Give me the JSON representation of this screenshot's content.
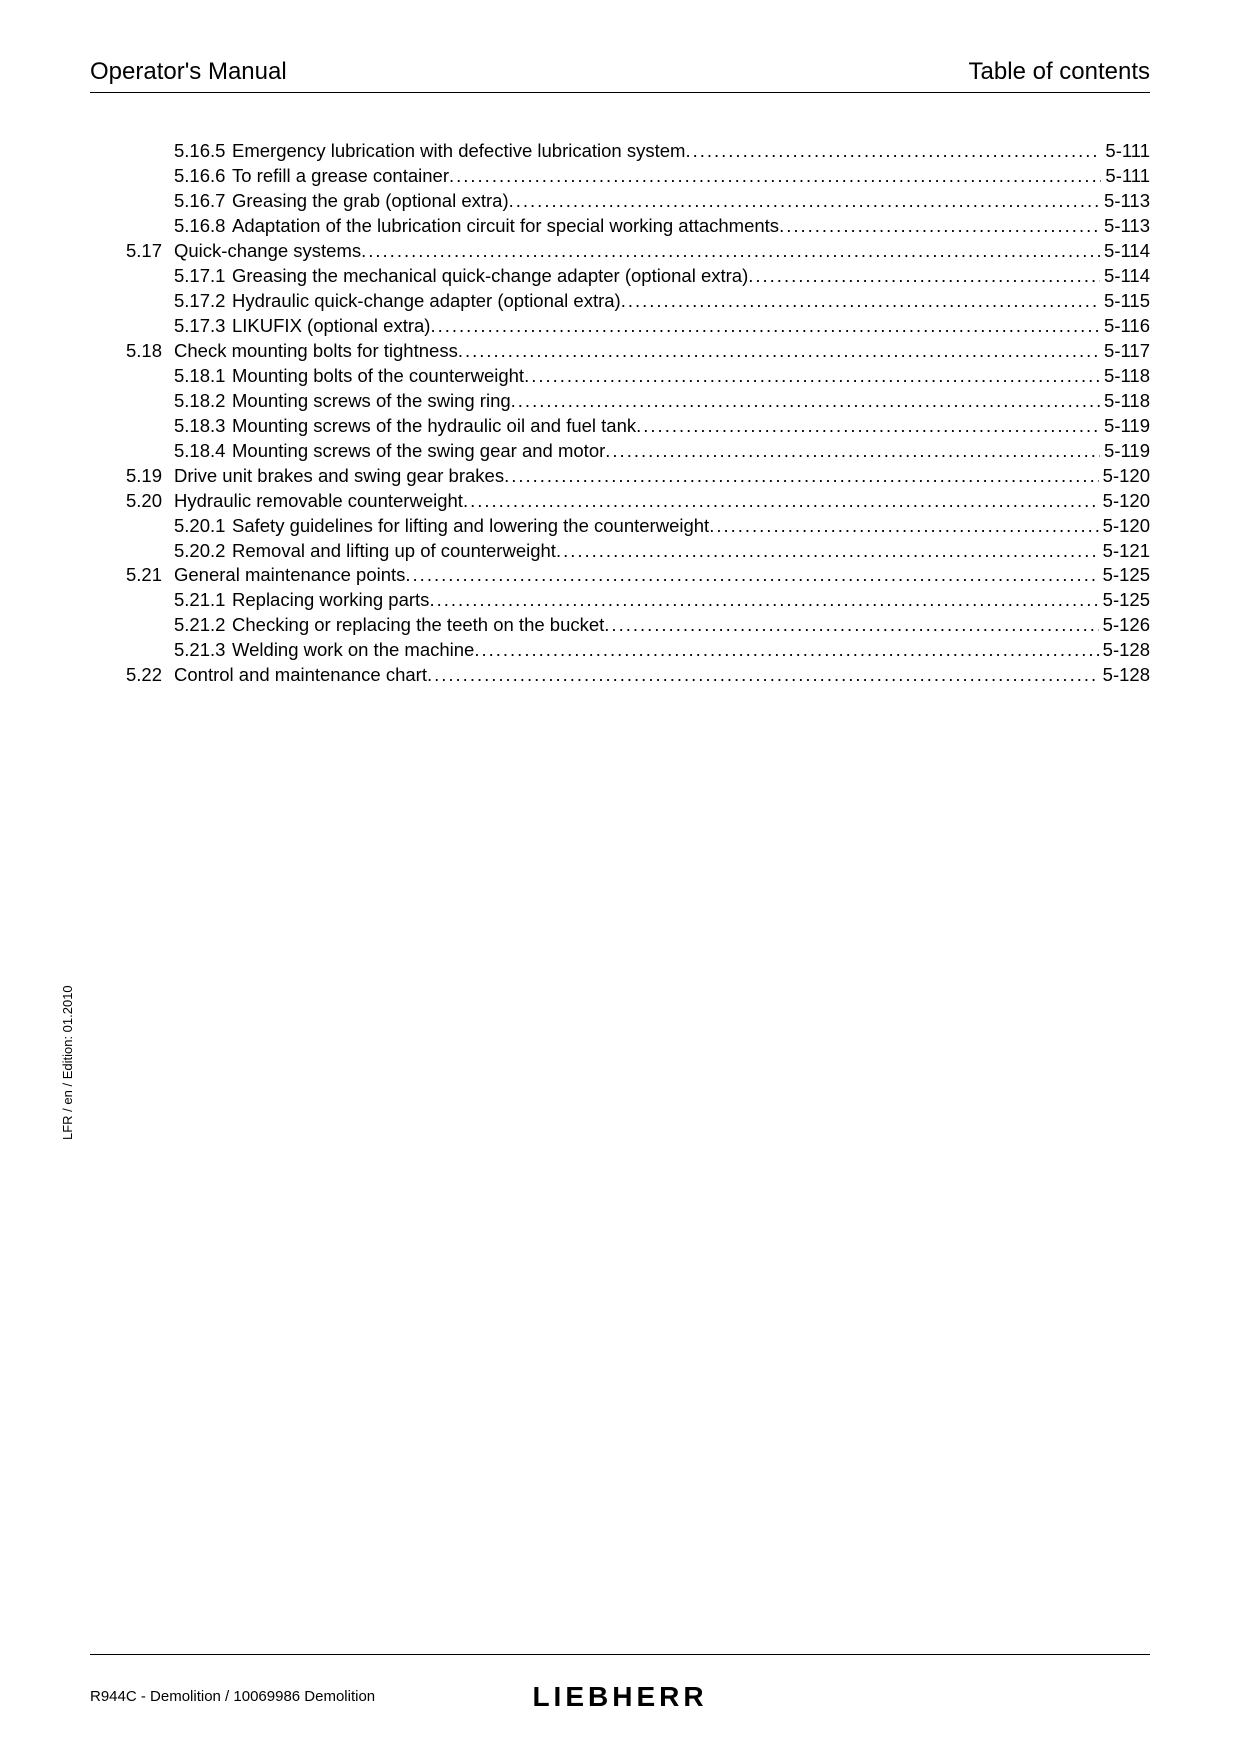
{
  "header": {
    "left": "Operator's Manual",
    "right": "Table of contents"
  },
  "toc": [
    {
      "level": "sub",
      "num": "5.16.5",
      "title": "Emergency lubrication with defective lubrication system",
      "page": "5-111"
    },
    {
      "level": "sub",
      "num": "5.16.6",
      "title": "To refill a grease container",
      "page": "5-111"
    },
    {
      "level": "sub",
      "num": "5.16.7",
      "title": "Greasing the grab (optional extra)",
      "page": "5-113"
    },
    {
      "level": "sub",
      "num": "5.16.8",
      "title": "Adaptation of the lubrication circuit for special working attachments",
      "page": "5-113"
    },
    {
      "level": "sec",
      "num": "5.17",
      "title": "Quick-change systems",
      "page": "5-114"
    },
    {
      "level": "sub",
      "num": "5.17.1",
      "title": "Greasing the mechanical quick-change adapter (optional extra)",
      "page": "5-114"
    },
    {
      "level": "sub",
      "num": "5.17.2",
      "title": "Hydraulic quick-change adapter (optional extra)",
      "page": "5-115"
    },
    {
      "level": "sub",
      "num": "5.17.3",
      "title": "LIKUFIX (optional extra)",
      "page": "5-116"
    },
    {
      "level": "sec",
      "num": "5.18",
      "title": "Check mounting bolts for tightness",
      "page": "5-117"
    },
    {
      "level": "sub",
      "num": "5.18.1",
      "title": "Mounting bolts of the counterweight",
      "page": "5-118"
    },
    {
      "level": "sub",
      "num": "5.18.2",
      "title": "Mounting screws of the swing ring",
      "page": "5-118"
    },
    {
      "level": "sub",
      "num": "5.18.3",
      "title": "Mounting screws of the hydraulic oil and fuel tank",
      "page": "5-119"
    },
    {
      "level": "sub",
      "num": "5.18.4",
      "title": "Mounting screws of the swing gear and motor",
      "page": "5-119"
    },
    {
      "level": "sec",
      "num": "5.19",
      "title": "Drive unit brakes and swing gear brakes",
      "page": "5-120"
    },
    {
      "level": "sec",
      "num": "5.20",
      "title": "Hydraulic removable counterweight",
      "page": "5-120"
    },
    {
      "level": "sub",
      "num": "5.20.1",
      "title": "Safety guidelines for lifting and lowering the counterweight",
      "page": "5-120"
    },
    {
      "level": "sub",
      "num": "5.20.2",
      "title": "Removal and lifting up of counterweight",
      "page": "5-121"
    },
    {
      "level": "sec",
      "num": "5.21",
      "title": "General maintenance points",
      "page": "5-125"
    },
    {
      "level": "sub",
      "num": "5.21.1",
      "title": "Replacing working parts",
      "page": "5-125"
    },
    {
      "level": "sub",
      "num": "5.21.2",
      "title": "Checking or replacing the teeth on the bucket",
      "page": "5-126"
    },
    {
      "level": "sub",
      "num": "5.21.3",
      "title": "Welding work on the machine",
      "page": "5-128"
    },
    {
      "level": "sec",
      "num": "5.22",
      "title": "Control and maintenance chart",
      "page": "5-128"
    }
  ],
  "side_label": "LFR / en / Edition: 01.2010",
  "footer": {
    "left": "R944C - Demolition / 10069986 Demolition",
    "brand": "LIEBHERR"
  }
}
